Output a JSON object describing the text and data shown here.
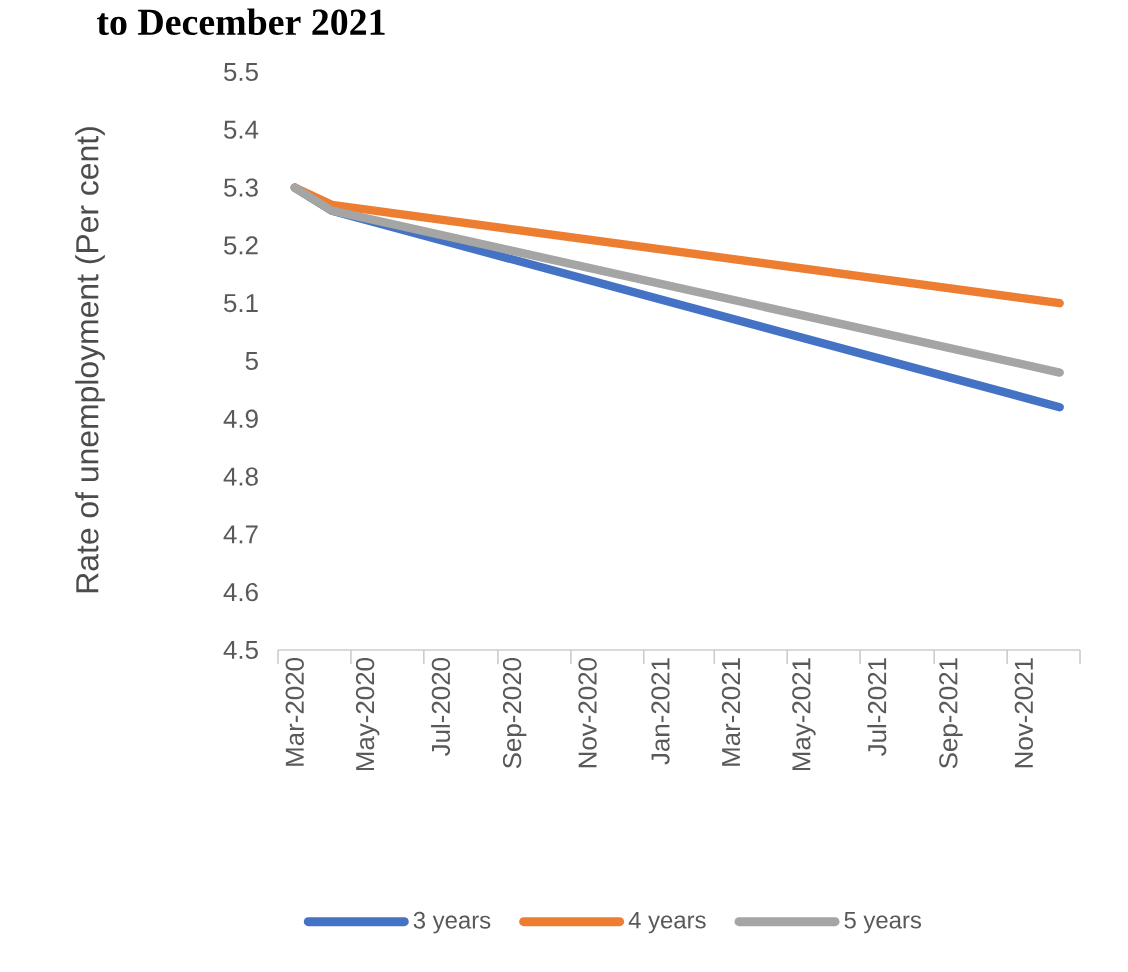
{
  "chart_data": {
    "type": "line",
    "title": "to December 2021",
    "ylabel": "Rate of unemployment (Per cent)",
    "xlim": [
      "2020-03-01",
      "2022-01-01"
    ],
    "xticks": [
      {
        "value": "2020-03-15",
        "label": "Mar-2020"
      },
      {
        "value": "2020-05-15",
        "label": "May-2020"
      },
      {
        "value": "2020-07-15",
        "label": "Jul-2020"
      },
      {
        "value": "2020-09-15",
        "label": "Sep-2020"
      },
      {
        "value": "2020-11-15",
        "label": "Nov-2020"
      },
      {
        "value": "2021-01-15",
        "label": "Jan-2021"
      },
      {
        "value": "2021-03-15",
        "label": "Mar-2021"
      },
      {
        "value": "2021-05-15",
        "label": "May-2021"
      },
      {
        "value": "2021-07-15",
        "label": "Jul-2021"
      },
      {
        "value": "2021-09-15",
        "label": "Sep-2021"
      },
      {
        "value": "2021-11-15",
        "label": "Nov-2021"
      },
      {
        "value": "2020-03-01",
        "label": null
      },
      {
        "value": "2020-05-01",
        "label": null
      },
      {
        "value": "2020-07-01",
        "label": null
      },
      {
        "value": "2020-09-01",
        "label": null
      },
      {
        "value": "2020-11-01",
        "label": null
      },
      {
        "value": "2021-01-01",
        "label": null
      },
      {
        "value": "2021-03-01",
        "label": null
      },
      {
        "value": "2021-05-01",
        "label": null
      },
      {
        "value": "2021-07-01",
        "label": null
      },
      {
        "value": "2021-09-01",
        "label": null
      },
      {
        "value": "2021-11-01",
        "label": null
      },
      {
        "value": "2022-01-01",
        "label": null
      }
    ],
    "ylim": [
      4.5,
      5.5
    ],
    "yticks": [
      4.5,
      4.6,
      4.7,
      4.8,
      4.9,
      5,
      5.1,
      5.2,
      5.3,
      5.4,
      5.5
    ],
    "legend": "bottom",
    "line_style": "solid",
    "series": [
      {
        "name": "3 years",
        "color": "#4472c4",
        "x": [
          "2020-03-15",
          "2020-04-15",
          "2021-12-15"
        ],
        "values": [
          5.3,
          5.26,
          4.92
        ]
      },
      {
        "name": "4 years",
        "color": "#ed7d31",
        "x": [
          "2020-03-15",
          "2020-04-15",
          "2021-12-15"
        ],
        "values": [
          5.3,
          5.27,
          5.1
        ]
      },
      {
        "name": "5 years",
        "color": "#a5a5a5",
        "x": [
          "2020-03-15",
          "2020-04-15",
          "2021-12-15"
        ],
        "values": [
          5.3,
          5.26,
          4.98
        ]
      }
    ]
  }
}
